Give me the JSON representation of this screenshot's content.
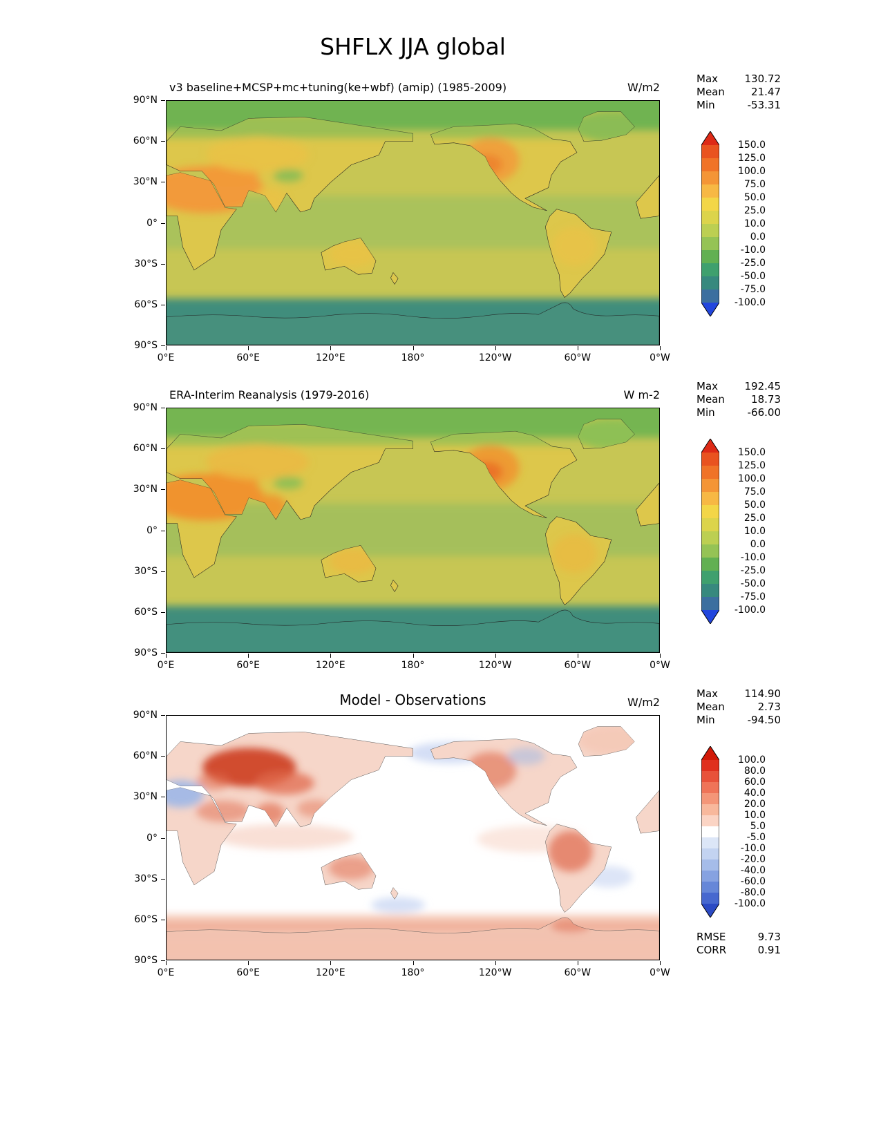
{
  "title": "SHFLX JJA global",
  "axes": {
    "lat_ticks": [
      "90°N",
      "60°N",
      "30°N",
      "0°",
      "30°S",
      "60°S",
      "90°S"
    ],
    "lon_ticks": [
      "0°E",
      "60°E",
      "120°E",
      "180°",
      "120°W",
      "60°W",
      "0°W"
    ]
  },
  "panels": [
    {
      "id": "model",
      "title": "v3 baseline+MCSP+mc+tuning(ke+wbf) (amip) (1985-2009)",
      "units": "W/m2",
      "stats": {
        "max_label": "Max",
        "max_value": "130.72",
        "mean_label": "Mean",
        "mean_value": "21.47",
        "min_label": "Min",
        "min_value": "-53.31"
      },
      "colorbar": {
        "tick_labels": [
          "150.0",
          "125.0",
          "100.0",
          "75.0",
          "50.0",
          "25.0",
          "10.0",
          "0.0",
          "-10.0",
          "-25.0",
          "-50.0",
          "-75.0",
          "-100.0"
        ],
        "segment_colors": [
          "#e9531f",
          "#f07327",
          "#f49536",
          "#f7b844",
          "#f3d647",
          "#dcd44b",
          "#bccf52",
          "#95c355",
          "#62b052",
          "#3fa06e",
          "#37897e",
          "#3c6f9f"
        ],
        "arrow_top_color": "#de2a16",
        "arrow_bottom_color": "#2246dd"
      },
      "map_colors": {
        "ocean": "#c7c654",
        "tropic_ocean": "#a9c25c",
        "arctic_ocean": "#6fb351",
        "southern_ocean": "#3f8d7b",
        "land": "#ddc74b",
        "hot": "#f29a3a",
        "hot2": "#ee7f2e",
        "warm": "#e9c247",
        "cool_patch": "#86bc55",
        "antarctica": "#47907d"
      }
    },
    {
      "id": "observations",
      "title": "ERA-Interim Reanalysis (1979-2016)",
      "units": "W m-2",
      "stats": {
        "max_label": "Max",
        "max_value": "192.45",
        "mean_label": "Mean",
        "mean_value": "18.73",
        "min_label": "Min",
        "min_value": "-66.00"
      },
      "colorbar": {
        "tick_labels": [
          "150.0",
          "125.0",
          "100.0",
          "75.0",
          "50.0",
          "25.0",
          "10.0",
          "0.0",
          "-10.0",
          "-25.0",
          "-50.0",
          "-75.0",
          "-100.0"
        ],
        "segment_colors": [
          "#e9531f",
          "#f07327",
          "#f49536",
          "#f7b844",
          "#f3d647",
          "#dcd44b",
          "#bccf52",
          "#95c355",
          "#62b052",
          "#3fa06e",
          "#37897e",
          "#3c6f9f"
        ],
        "arrow_top_color": "#de2a16",
        "arrow_bottom_color": "#2246dd"
      },
      "map_colors": {
        "ocean": "#c7c654",
        "tropic_ocean": "#a3bf5c",
        "arctic_ocean": "#74b551",
        "southern_ocean": "#3f8d7b",
        "land": "#ddc74b",
        "hot": "#f0932f",
        "hot2": "#ea6a26",
        "warm": "#eaba42",
        "cool_patch": "#8abf55",
        "antarctica": "#43907e"
      }
    },
    {
      "id": "difference",
      "title": "Model - Observations",
      "units": "W/m2",
      "stats": {
        "max_label": "Max",
        "max_value": "114.90",
        "mean_label": "Mean",
        "mean_value": "2.73",
        "min_label": "Min",
        "min_value": "-94.50"
      },
      "colorbar": {
        "tick_labels": [
          "100.0",
          "80.0",
          "60.0",
          "40.0",
          "20.0",
          "10.0",
          "5.0",
          "-5.0",
          "-10.0",
          "-20.0",
          "-40.0",
          "-60.0",
          "-80.0",
          "-100.0"
        ],
        "segment_colors": [
          "#e0301e",
          "#e8523a",
          "#ef7458",
          "#f49678",
          "#f8b89c",
          "#fbd4c4",
          "#ffffff",
          "#dce6f7",
          "#c3d3f1",
          "#a5bce9",
          "#86a2e1",
          "#6687d8",
          "#4768cf"
        ],
        "arrow_top_color": "#d11807",
        "arrow_bottom_color": "#2b4ac4"
      },
      "map_colors": {
        "background": "#ffffff",
        "land_tint": "#f6d6c9",
        "positive": "#e06a4c",
        "positive_strong": "#cf4428",
        "positive_light": "#f4c2ae",
        "negative": "#9db7e8",
        "negative_light": "#cfdaf4",
        "antarctica_tint": "#f2c3b1",
        "coastline": "#555555"
      },
      "extra": {
        "rmse_label": "RMSE",
        "rmse_value": "9.73",
        "corr_label": "CORR",
        "corr_value": "0.91"
      }
    }
  ],
  "chart_data": {
    "type": "heatmap",
    "subtype": "global_latlon_contour_maps",
    "variable": "SHFLX",
    "season": "JJA",
    "region": "global",
    "figure_title": "SHFLX JJA global",
    "x_axis": {
      "ticks": [
        "0°E",
        "60°E",
        "120°E",
        "180°",
        "120°W",
        "60°W",
        "0°W"
      ],
      "range_deg_lon": [
        0,
        360
      ]
    },
    "y_axis": {
      "ticks": [
        "90°N",
        "60°N",
        "30°N",
        "0°",
        "30°S",
        "60°S",
        "90°S"
      ],
      "range_deg_lat": [
        -90,
        90
      ]
    },
    "panels": [
      {
        "name": "model",
        "title": "v3 baseline+MCSP+mc+tuning(ke+wbf) (amip) (1985-2009)",
        "units": "W/m2",
        "max": 130.72,
        "mean": 21.47,
        "min": -53.31,
        "contour_levels": [
          -100,
          -75,
          -50,
          -25,
          -10,
          0,
          10,
          25,
          50,
          75,
          100,
          125,
          150
        ],
        "colormap": "red-yellow-green-blue",
        "description": "Sensible heat flux: yellow-green oceans, orange maxima over Sahara/Arabia, central Asia and western North America, teal negatives over Antarctica and Arctic-adjacent seas"
      },
      {
        "name": "observations",
        "title": "ERA-Interim Reanalysis (1979-2016)",
        "units": "W m-2",
        "max": 192.45,
        "mean": 18.73,
        "min": -66.0,
        "contour_levels": [
          -100,
          -75,
          -50,
          -25,
          -10,
          0,
          10,
          25,
          50,
          75,
          100,
          125,
          150
        ],
        "colormap": "red-yellow-green-blue",
        "description": "ERA-Interim reanalysis sensible heat flux with stronger orange maxima over deserts and southwestern North America"
      },
      {
        "name": "difference",
        "title": "Model - Observations",
        "units": "W/m2",
        "max": 114.9,
        "mean": 2.73,
        "min": -94.5,
        "rmse": 9.73,
        "corr": 0.91,
        "contour_levels": [
          -100,
          -80,
          -60,
          -40,
          -20,
          -10,
          -5,
          5,
          10,
          20,
          40,
          60,
          80,
          100
        ],
        "colormap": "blue-white-red",
        "description": "Model minus observations: red positive bias over central Asia, land areas and Southern Ocean ring; blue negative bias over northwest Africa, North Pacific and parts of Canada"
      }
    ]
  }
}
